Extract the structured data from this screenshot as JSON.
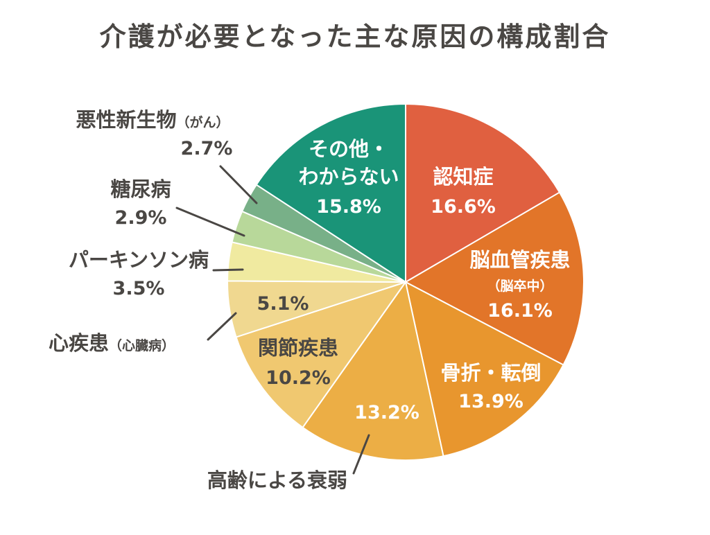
{
  "chart_data": {
    "type": "pie",
    "title": "介護が必要となった主な原因の構成割合",
    "unit": "%",
    "slices": [
      {
        "label": "認知症",
        "sublabel": "",
        "value": 16.6,
        "value_text": "16.6%",
        "color": "#e06040"
      },
      {
        "label": "脳血管疾患",
        "sublabel": "（脳卒中）",
        "value": 16.1,
        "value_text": "16.1%",
        "color": "#e27529"
      },
      {
        "label": "骨折・転倒",
        "sublabel": "",
        "value": 13.9,
        "value_text": "13.9%",
        "color": "#e8962e"
      },
      {
        "label": "高齢による衰弱",
        "sublabel": "",
        "value": 13.2,
        "value_text": "13.2%",
        "color": "#ecae45"
      },
      {
        "label": "関節疾患",
        "sublabel": "",
        "value": 10.2,
        "value_text": "10.2%",
        "color": "#f0c870"
      },
      {
        "label": "心疾患",
        "sublabel": "（心臓病）",
        "value": 5.1,
        "value_text": "5.1%",
        "color": "#f0d890"
      },
      {
        "label": "パーキンソン病",
        "sublabel": "",
        "value": 3.5,
        "value_text": "3.5%",
        "color": "#f0eaa0"
      },
      {
        "label": "糖尿病",
        "sublabel": "",
        "value": 2.9,
        "value_text": "2.9%",
        "color": "#b8d89a"
      },
      {
        "label": "悪性新生物",
        "sublabel": "（がん）",
        "value": 2.7,
        "value_text": "2.7%",
        "color": "#78b088"
      },
      {
        "label": "その他・わからない",
        "label_line1": "その他・",
        "label_line2": "わからない",
        "sublabel": "",
        "value": 15.8,
        "value_text": "15.8%",
        "color": "#1a9478"
      }
    ]
  }
}
